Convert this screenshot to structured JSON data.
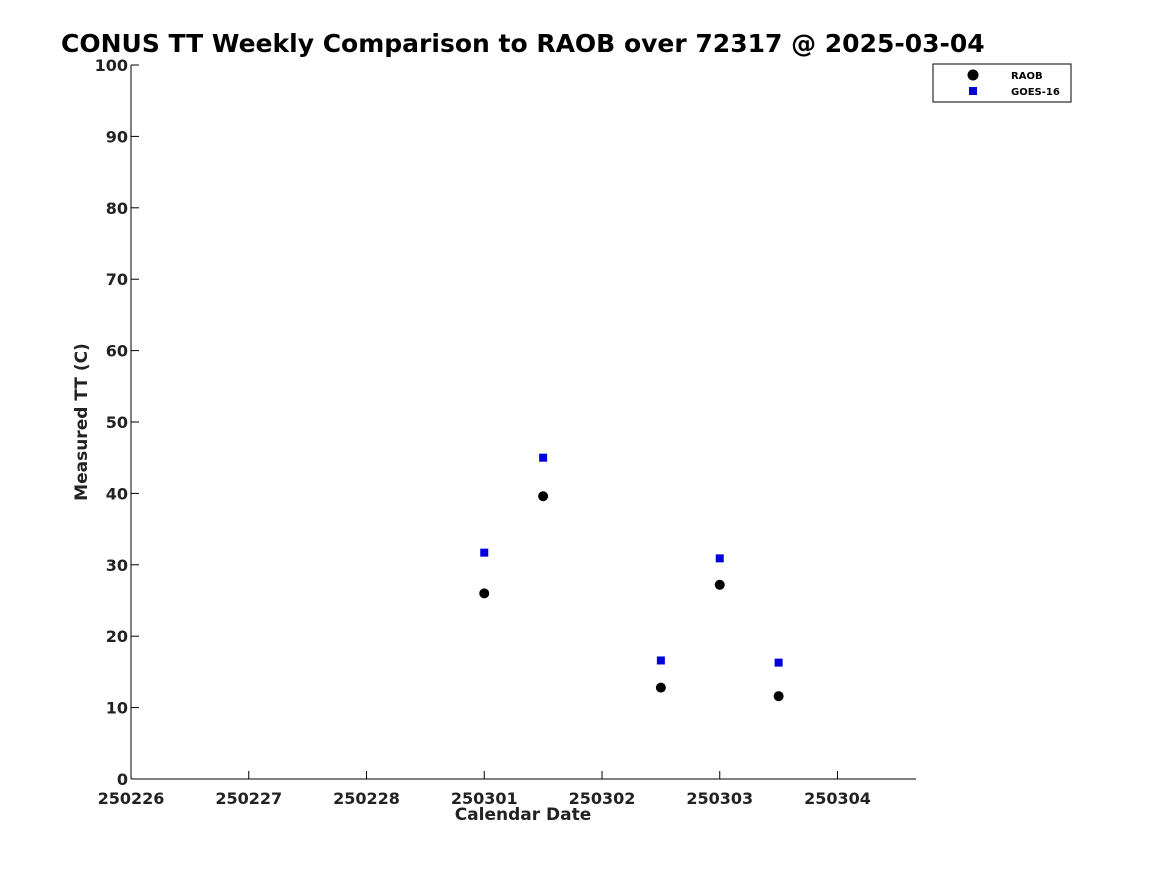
{
  "chart_data": {
    "type": "scatter",
    "title": "CONUS TT Weekly Comparison to RAOB over 72317 @ 2025-03-04",
    "xlabel": "Calendar Date",
    "ylabel": "Measured TT (C)",
    "xlim": [
      "2025-02-26",
      "2025-03-04T16:00"
    ],
    "ylim": [
      0,
      100
    ],
    "x_ticks": [
      "250226",
      "250227",
      "250228",
      "250301",
      "250302",
      "250303",
      "250304"
    ],
    "y_ticks": [
      "0",
      "10",
      "20",
      "30",
      "40",
      "50",
      "60",
      "70",
      "80",
      "90",
      "100"
    ],
    "grid": false,
    "legend_position": "top-right",
    "series": [
      {
        "name": "RAOB",
        "marker": "circle",
        "color": "#000000",
        "points": [
          {
            "x": "2025-03-01T00:00",
            "y": 26.0
          },
          {
            "x": "2025-03-01T12:00",
            "y": 39.6
          },
          {
            "x": "2025-03-02T12:00",
            "y": 12.8
          },
          {
            "x": "2025-03-03T00:00",
            "y": 27.2
          },
          {
            "x": "2025-03-03T12:00",
            "y": 11.6
          }
        ]
      },
      {
        "name": "GOES-16",
        "marker": "square",
        "color": "#0000dd",
        "points": [
          {
            "x": "2025-03-01T00:00",
            "y": 31.7
          },
          {
            "x": "2025-03-01T12:00",
            "y": 45.0
          },
          {
            "x": "2025-03-02T12:00",
            "y": 16.6
          },
          {
            "x": "2025-03-03T00:00",
            "y": 30.9
          },
          {
            "x": "2025-03-03T12:00",
            "y": 16.3
          }
        ]
      }
    ]
  }
}
